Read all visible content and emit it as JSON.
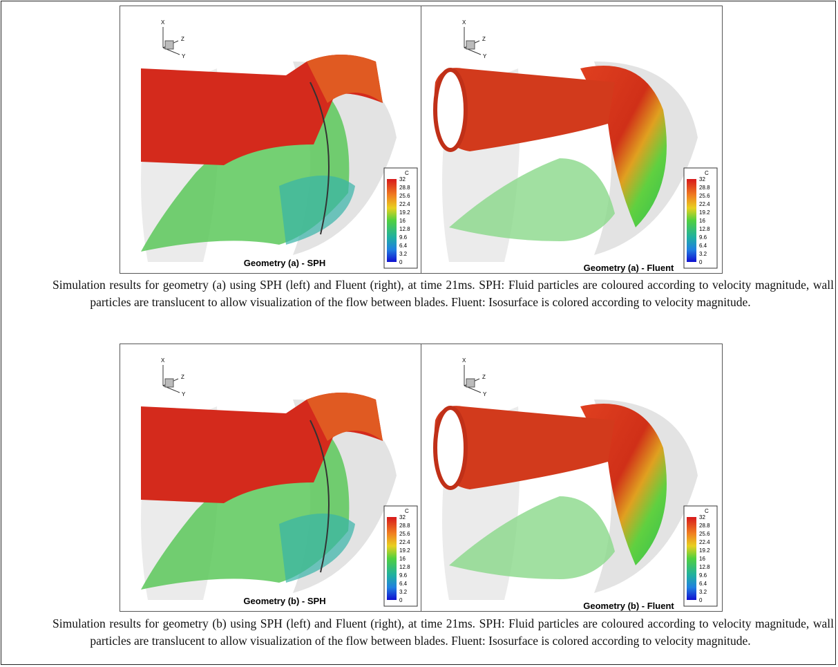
{
  "figures": [
    {
      "panels": [
        {
          "title": "Geometry (a) - SPH",
          "axes": {
            "x": "X",
            "y": "Y",
            "z": "Z"
          },
          "colorbar": {
            "title": "C",
            "ticks": [
              32,
              28.8,
              25.6,
              22.4,
              19.2,
              16,
              12.8,
              9.6,
              6.4,
              3.2,
              0
            ]
          }
        },
        {
          "title": "Geometry (a) - Fluent",
          "axes": {
            "x": "X",
            "y": "Y",
            "z": "Z"
          },
          "colorbar": {
            "title": "C",
            "ticks": [
              32,
              28.8,
              25.6,
              22.4,
              19.2,
              16,
              12.8,
              9.6,
              6.4,
              3.2,
              0
            ]
          }
        }
      ],
      "caption": "Simulation results for geometry (a) using SPH (left) and Fluent (right), at time 21ms. SPH: Fluid particles are coloured according to velocity magnitude, wall particles are translucent to allow visualization of the flow between blades. Fluent: Isosurface is colored according to velocity magnitude."
    },
    {
      "panels": [
        {
          "title": "Geometry (b) - SPH",
          "axes": {
            "x": "X",
            "y": "Y",
            "z": "Z"
          },
          "colorbar": {
            "title": "C",
            "ticks": [
              32,
              28.8,
              25.6,
              22.4,
              19.2,
              16,
              12.8,
              9.6,
              6.4,
              3.2,
              0
            ]
          }
        },
        {
          "title": "Geometry (b) - Fluent",
          "axes": {
            "x": "X",
            "y": "Y",
            "z": "Z"
          },
          "colorbar": {
            "title": "C",
            "ticks": [
              32,
              28.8,
              25.6,
              22.4,
              19.2,
              16,
              12.8,
              9.6,
              6.4,
              3.2,
              0
            ]
          }
        }
      ],
      "caption": "Simulation results for geometry (b) using SPH (left) and Fluent (right), at time 21ms. SPH: Fluid particles are coloured according to velocity magnitude, wall particles are translucent to allow visualization of the flow between blades. Fluent: Isosurface is colored according to velocity magnitude."
    }
  ]
}
